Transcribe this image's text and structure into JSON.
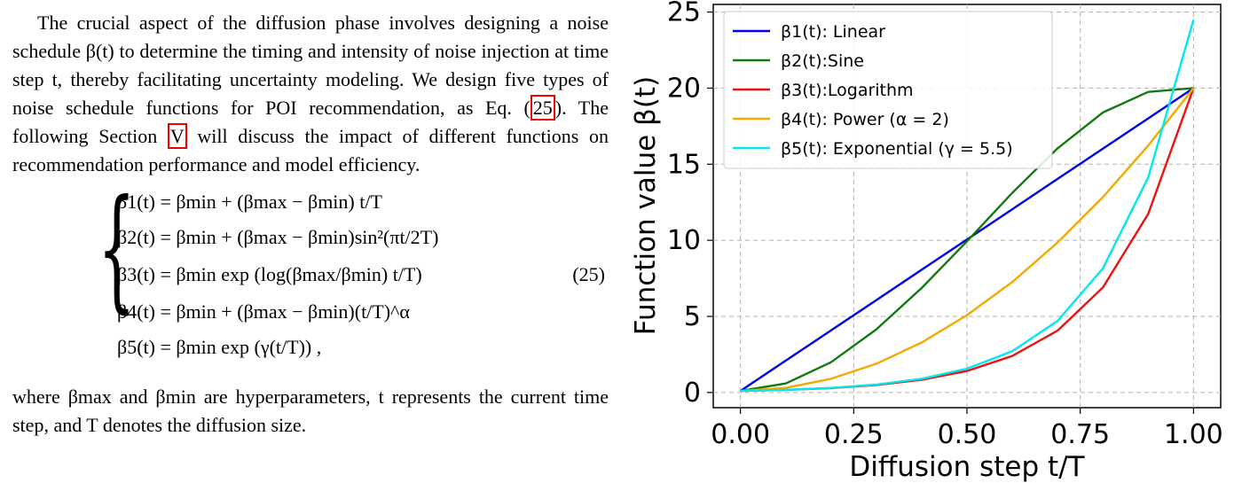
{
  "paragraph_intro": "The crucial aspect of the diffusion phase involves designing a noise schedule β(t) to determine the timing and intensity of noise injection at time step t, thereby facilitating uncertainty modeling. We design five types of noise schedule functions for POI recommendation, as Eq. (",
  "paragraph_ref_eq": "25",
  "paragraph_mid": "). The following Section ",
  "paragraph_ref_section": "V",
  "paragraph_end": " will discuss the impact of different functions on recommendation performance and model efficiency.",
  "equations": [
    "β1(t) = βmin + (βmax − βmin) t/T",
    "β2(t) = βmin + (βmax − βmin)sin²(πt/2T)",
    "β3(t) = βmin exp (log(βmax/βmin) t/T)",
    "β4(t) = βmin + (βmax − βmin)(t/T)^α",
    "β5(t) = βmin exp (γ(t/T)) ,"
  ],
  "equation_number": "(25)",
  "paragraph_where": "where βmax and βmin are hyperparameters, t represents the current time step, and T denotes the diffusion size.",
  "chart_data": {
    "type": "line",
    "xlabel": "Diffusion step t/T",
    "ylabel": "Function value β(t)",
    "xlim": [
      -0.06,
      1.06
    ],
    "ylim": [
      -1,
      25.5
    ],
    "xticks": [
      "0.00",
      "0.25",
      "0.50",
      "0.75",
      "1.00"
    ],
    "yticks": [
      "0",
      "5",
      "10",
      "15",
      "20",
      "25"
    ],
    "grid": true,
    "legend_position": "top-left",
    "series": [
      {
        "name": "β1(t): Linear",
        "color": "#0000ee",
        "x": [
          0,
          0.1,
          0.2,
          0.3,
          0.4,
          0.5,
          0.6,
          0.7,
          0.8,
          0.9,
          1.0
        ],
        "y": [
          0.1,
          2.09,
          4.08,
          6.07,
          8.06,
          10.05,
          12.04,
          14.03,
          16.02,
          18.01,
          20.0
        ]
      },
      {
        "name": "β2(t):Sine",
        "color": "#107a10",
        "x": [
          0,
          0.1,
          0.2,
          0.3,
          0.4,
          0.5,
          0.6,
          0.7,
          0.8,
          0.9,
          1.0
        ],
        "y": [
          0.1,
          0.59,
          1.99,
          4.15,
          6.86,
          9.93,
          13.12,
          16.04,
          18.4,
          19.75,
          20.0
        ]
      },
      {
        "name": "β3(t):Logarithm",
        "color": "#ee1111",
        "x": [
          0,
          0.1,
          0.2,
          0.3,
          0.4,
          0.5,
          0.6,
          0.7,
          0.8,
          0.9,
          1.0
        ],
        "y": [
          0.1,
          0.17,
          0.29,
          0.49,
          0.83,
          1.41,
          2.4,
          4.06,
          6.9,
          11.73,
          20.0
        ]
      },
      {
        "name": "β4(t): Power (α = 2)",
        "color": "#f5a800",
        "x": [
          0,
          0.1,
          0.2,
          0.3,
          0.4,
          0.5,
          0.6,
          0.7,
          0.8,
          0.9,
          1.0
        ],
        "y": [
          0.1,
          0.3,
          0.9,
          1.89,
          3.28,
          5.08,
          7.26,
          9.85,
          12.84,
          16.22,
          20.0
        ]
      },
      {
        "name": "β5(t): Exponential (γ = 5.5)",
        "color": "#00e8f0",
        "x": [
          0,
          0.1,
          0.2,
          0.3,
          0.4,
          0.5,
          0.6,
          0.7,
          0.8,
          0.9,
          1.0
        ],
        "y": [
          0.1,
          0.17,
          0.3,
          0.52,
          0.9,
          1.56,
          2.71,
          4.7,
          8.15,
          14.13,
          24.5
        ]
      }
    ]
  }
}
